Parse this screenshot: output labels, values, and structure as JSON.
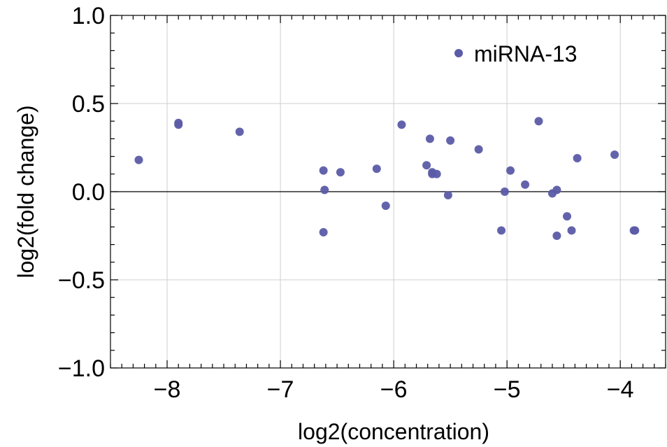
{
  "chart_data": {
    "type": "scatter",
    "xlabel": "log2(concentration)",
    "ylabel": "log2(fold change)",
    "xlim": [
      -8.5,
      -3.6
    ],
    "ylim": [
      -1.0,
      1.0
    ],
    "x_ticks": [
      -8,
      -7,
      -6,
      -5,
      -4
    ],
    "x_tick_labels": [
      "−8",
      "−7",
      "−6",
      "−5",
      "−4"
    ],
    "y_ticks": [
      1.0,
      0.5,
      0.0,
      -0.5,
      -1.0
    ],
    "y_tick_labels": [
      "1.0",
      "0.5",
      "0.0",
      "−0.5",
      "−1.0"
    ],
    "grid": true,
    "legend_position": "top-right",
    "colors": {
      "series": "#5b5ba8",
      "grid": "#cfcfcf",
      "axis": "#000000"
    },
    "series": [
      {
        "name": "miRNA-13",
        "points": [
          [
            -8.25,
            0.18
          ],
          [
            -7.9,
            0.39
          ],
          [
            -7.9,
            0.38
          ],
          [
            -7.36,
            0.34
          ],
          [
            -6.62,
            0.12
          ],
          [
            -6.61,
            0.01
          ],
          [
            -6.62,
            -0.23
          ],
          [
            -6.47,
            0.11
          ],
          [
            -6.15,
            0.13
          ],
          [
            -6.07,
            -0.08
          ],
          [
            -5.93,
            0.38
          ],
          [
            -5.71,
            0.15
          ],
          [
            -5.68,
            0.3
          ],
          [
            -5.66,
            0.1
          ],
          [
            -5.66,
            0.11
          ],
          [
            -5.62,
            0.1
          ],
          [
            -5.52,
            -0.02
          ],
          [
            -5.5,
            0.29
          ],
          [
            -5.25,
            0.24
          ],
          [
            -5.05,
            -0.22
          ],
          [
            -5.02,
            0.0
          ],
          [
            -4.97,
            0.12
          ],
          [
            -4.84,
            0.04
          ],
          [
            -4.72,
            0.4
          ],
          [
            -4.6,
            -0.01
          ],
          [
            -4.56,
            0.01
          ],
          [
            -4.56,
            -0.25
          ],
          [
            -4.47,
            -0.14
          ],
          [
            -4.43,
            -0.22
          ],
          [
            -4.38,
            0.19
          ],
          [
            -4.05,
            0.21
          ],
          [
            -3.88,
            -0.22
          ],
          [
            -3.87,
            -0.22
          ]
        ]
      }
    ]
  }
}
